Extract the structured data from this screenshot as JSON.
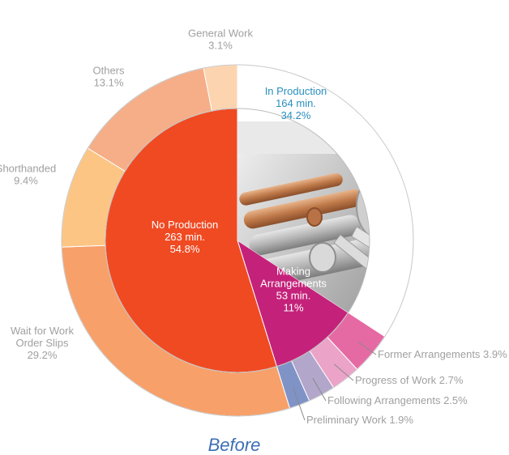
{
  "chart_data": {
    "type": "pie",
    "subtype": "nested-donut",
    "caption": "Before",
    "inner_ring": [
      {
        "name": "In Production",
        "minutes": "164 min.",
        "value": 34.2,
        "color": "#ffffff",
        "text_color": "#2a8fc0"
      },
      {
        "name": "Making Arrangements",
        "name_lines": [
          "Making",
          "Arrangements"
        ],
        "minutes": "53 min.",
        "value": 11,
        "color": "#c4227a",
        "text_color": "#ffffff"
      },
      {
        "name": "No Production",
        "minutes": "263 min.",
        "value": 54.8,
        "color": "#f04a23",
        "text_color": "#ffffff"
      }
    ],
    "outer_ring": [
      {
        "name": "In Production",
        "value": 34.2,
        "color": "#ffffff",
        "label": ""
      },
      {
        "name": "Former Arrangements",
        "value": 3.9,
        "color": "#e56aa3",
        "label": "Former Arrangements 3.9%"
      },
      {
        "name": "Progress of Work",
        "value": 2.7,
        "color": "#eba3c8",
        "label": "Progress of Work 2.7%"
      },
      {
        "name": "Following Arrangements",
        "value": 2.5,
        "color": "#b2a6ca",
        "label": "Following Arrangements 2.5%"
      },
      {
        "name": "Preliminary Work",
        "value": 1.9,
        "color": "#7f93c6",
        "label": "Preliminary Work 1.9%"
      },
      {
        "name": "Wait for Work Order Slips",
        "value": 29.2,
        "color": "#f7a06a",
        "label_lines": [
          "Wait for Work",
          "Order Slips",
          "29.2%"
        ]
      },
      {
        "name": "Shorthanded",
        "value": 9.4,
        "color": "#fcc584",
        "label_lines": [
          "Shorthanded",
          "9.4%"
        ]
      },
      {
        "name": "Others",
        "value": 13.1,
        "color": "#f5ae87",
        "label_lines": [
          "Others",
          "13.1%"
        ]
      },
      {
        "name": "General Work",
        "value": 3.1,
        "color": "#fcd4b0",
        "label_lines": [
          "General Work",
          "3.1%"
        ]
      }
    ],
    "photo_note": "metal-bars-photo"
  }
}
